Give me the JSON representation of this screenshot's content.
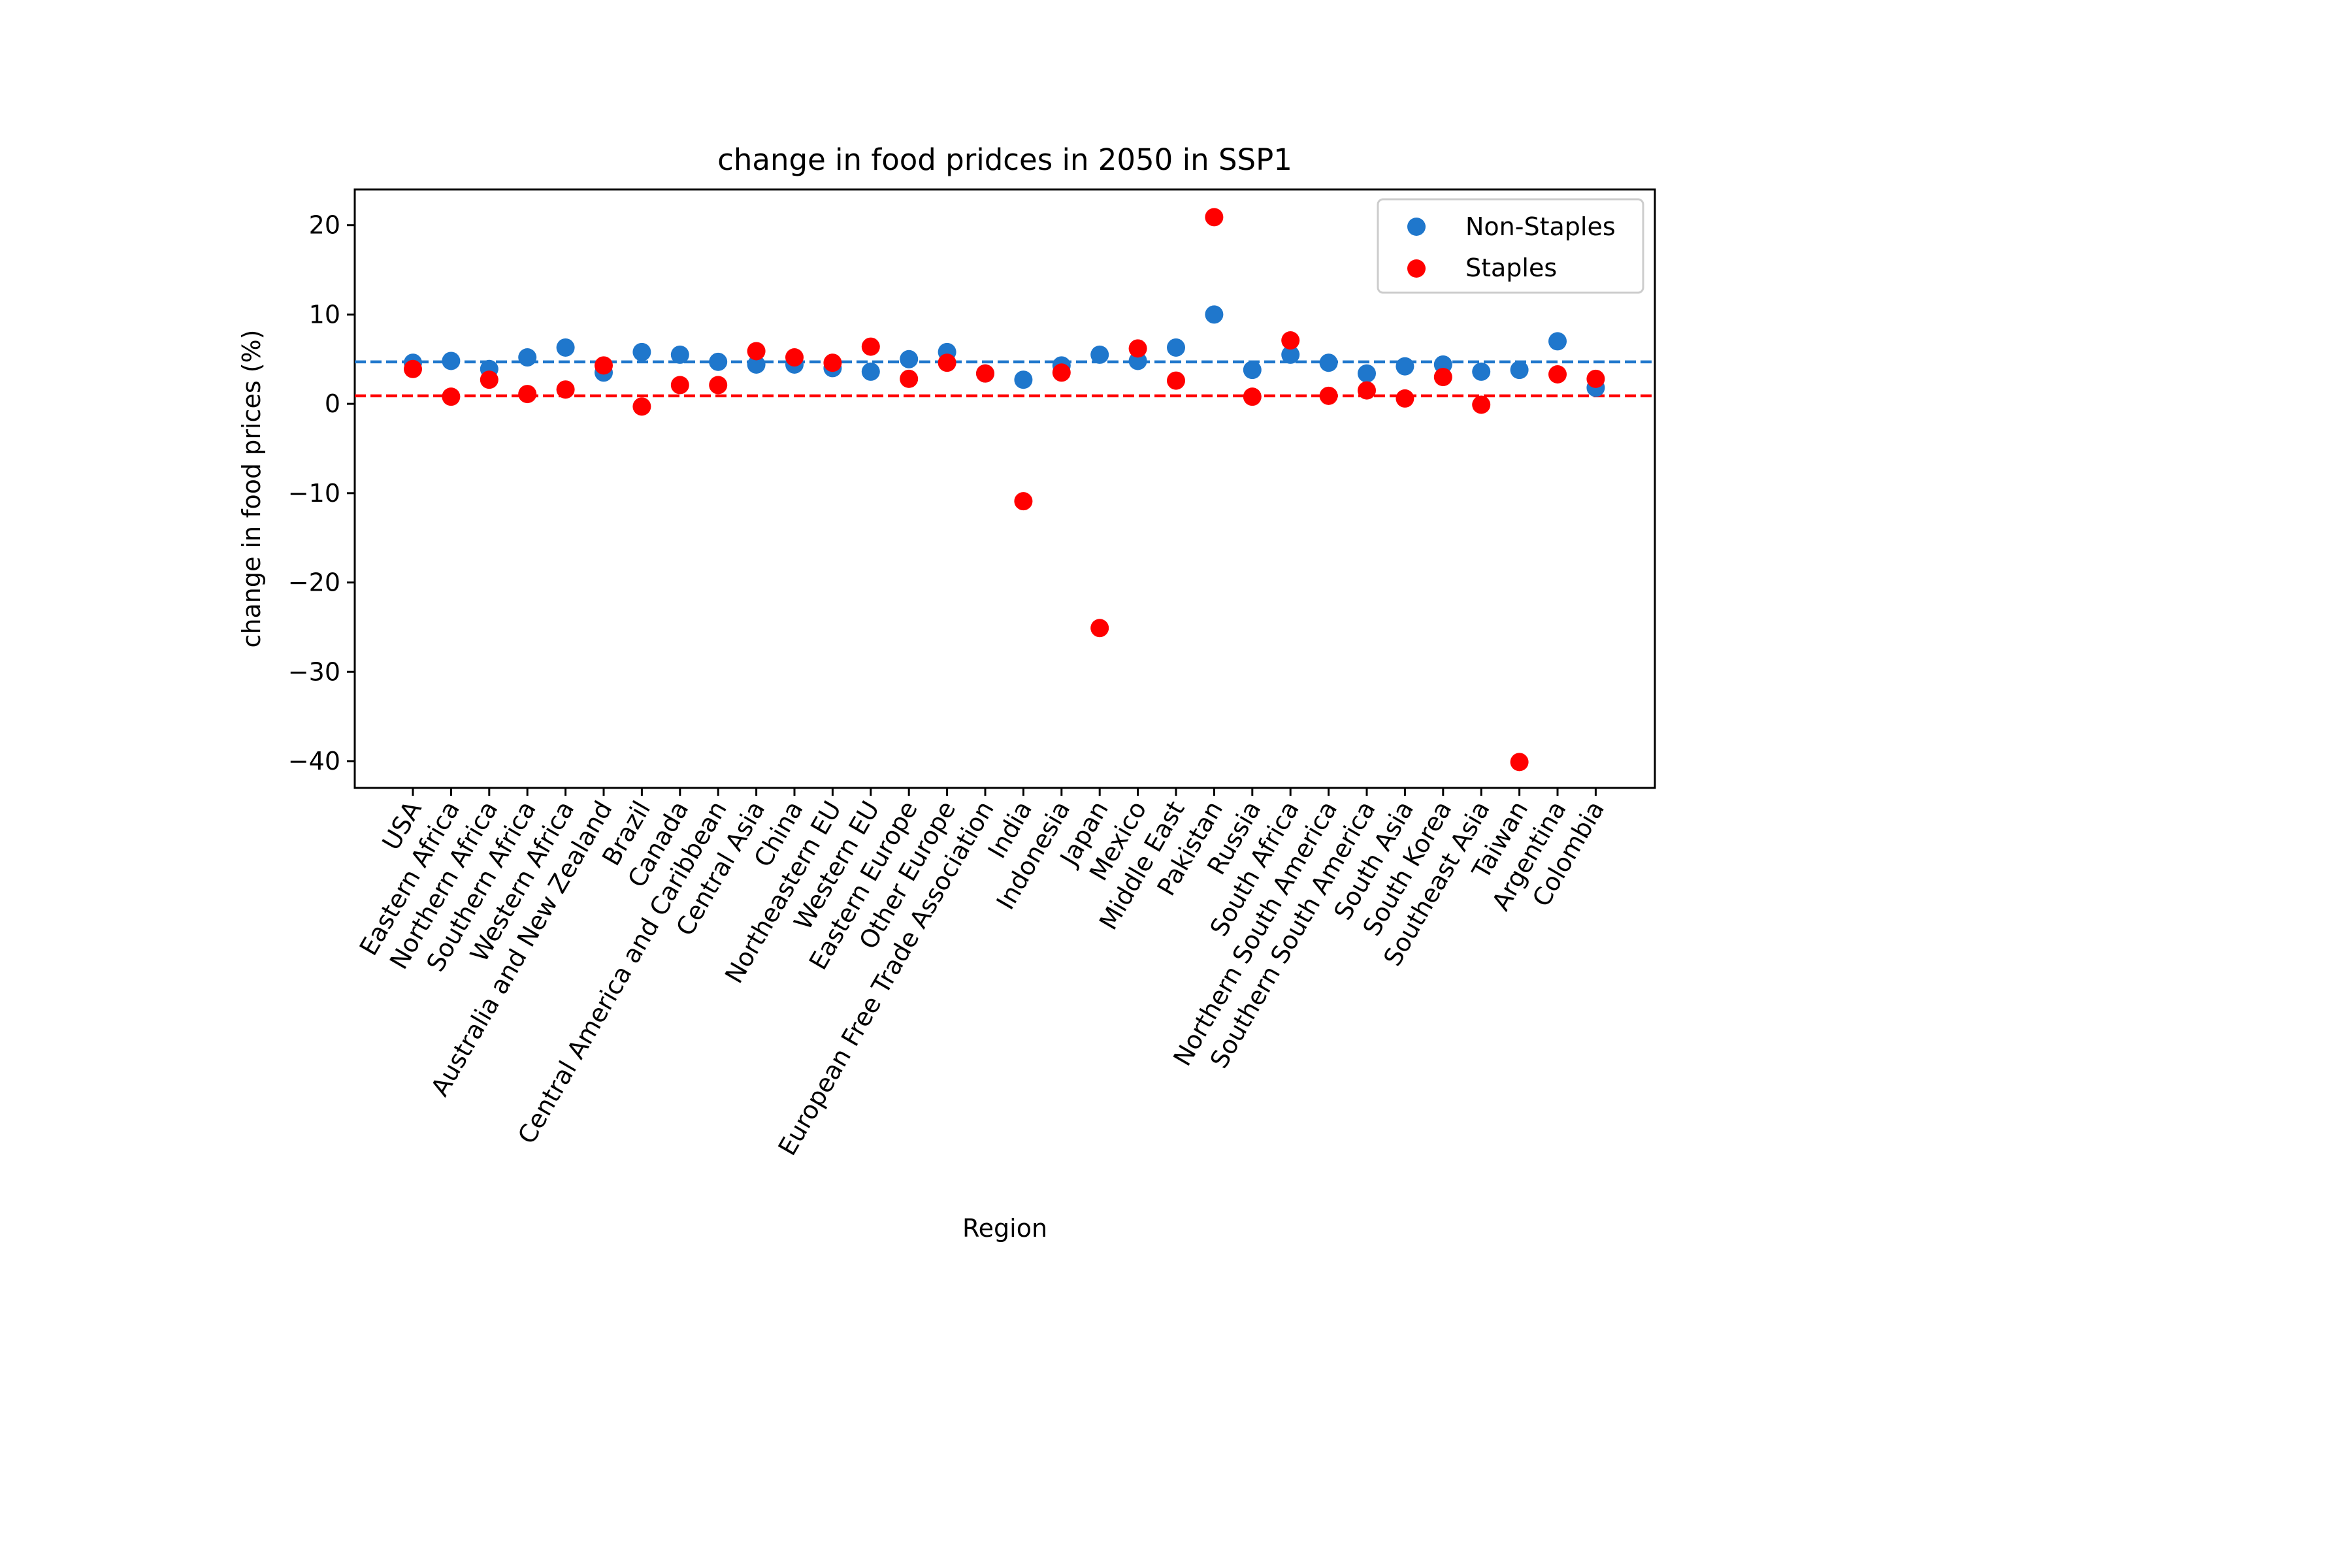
{
  "chart_data": {
    "type": "scatter",
    "title": "change in food pridces in 2050 in SSP1",
    "xlabel": "Region",
    "ylabel": "change in food prices (%)",
    "ylim": [
      -43,
      24
    ],
    "yticks": [
      -40,
      -30,
      -20,
      -10,
      0,
      10,
      20
    ],
    "ytick_labels": [
      "−40",
      "−30",
      "−20",
      "−10",
      "0",
      "10",
      "20"
    ],
    "grid": false,
    "legend_position": "top-right",
    "categories": [
      "USA",
      "Eastern Africa",
      "Northern Africa",
      "Southern Africa",
      "Western Africa",
      "Australia and New Zealand",
      "Brazil",
      "Canada",
      "Central America and Caribbean",
      "Central Asia",
      "China",
      "Northeastern EU",
      "Western EU",
      "Eastern Europe",
      "Other Europe",
      "European Free Trade Association",
      "India",
      "Indonesia",
      "Japan",
      "Mexico",
      "Middle East",
      "Pakistan",
      "Russia",
      "South Africa",
      "Northern South America",
      "Southern South America",
      "South Asia",
      "South Korea",
      "Southeast Asia",
      "Taiwan",
      "Argentina",
      "Colombia"
    ],
    "series": [
      {
        "name": "Non-Staples",
        "color": "#1f77cc",
        "mean": 4.7,
        "values": [
          4.6,
          4.8,
          3.9,
          5.2,
          6.3,
          3.5,
          5.8,
          5.5,
          4.7,
          4.4,
          4.4,
          4.0,
          3.6,
          5.0,
          5.8,
          3.4,
          2.7,
          4.3,
          5.5,
          4.8,
          6.3,
          10.0,
          3.8,
          5.5,
          4.6,
          3.4,
          4.2,
          4.4,
          3.6,
          3.8,
          7.0,
          1.8
        ]
      },
      {
        "name": "Staples",
        "color": "#ff0000",
        "mean": 0.9,
        "values": [
          3.9,
          0.8,
          2.7,
          1.1,
          1.6,
          4.3,
          -0.3,
          2.1,
          2.1,
          5.9,
          5.2,
          4.6,
          6.4,
          2.8,
          4.6,
          3.4,
          -10.9,
          3.5,
          -25.1,
          6.2,
          2.6,
          20.9,
          0.8,
          7.1,
          0.9,
          1.5,
          0.6,
          3.0,
          -0.1,
          -40.1,
          3.3,
          2.8
        ]
      }
    ]
  }
}
